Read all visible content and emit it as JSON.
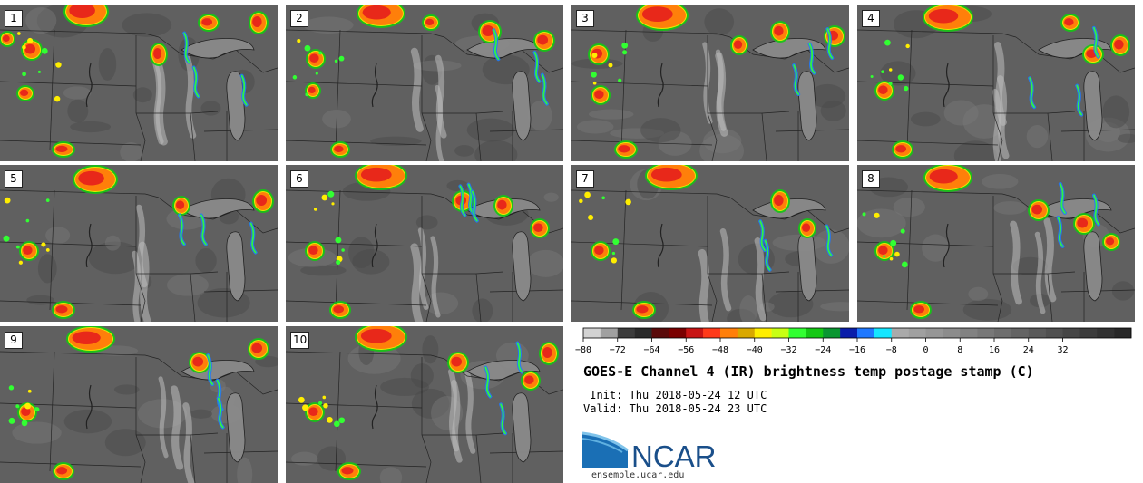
{
  "panels": [
    {
      "label": "1"
    },
    {
      "label": "2"
    },
    {
      "label": "3"
    },
    {
      "label": "4"
    },
    {
      "label": "5"
    },
    {
      "label": "6"
    },
    {
      "label": "7"
    },
    {
      "label": "8"
    },
    {
      "label": "9"
    },
    {
      "label": "10"
    }
  ],
  "colorbar": {
    "colors": [
      "#d2d2d2",
      "#a0a0a0",
      "#3c3c3c",
      "#2a2a2a",
      "#5a0a0a",
      "#7a0000",
      "#c81414",
      "#ff3a1a",
      "#ff7f0a",
      "#d9a800",
      "#ffee00",
      "#c8ff14",
      "#32ff32",
      "#14c814",
      "#0a9632",
      "#0a1eaa",
      "#1e78ff",
      "#14e6ff",
      "#aaaaaa",
      "#a0a0a0",
      "#969696",
      "#8c8c8c",
      "#828282",
      "#787878",
      "#6e6e6e",
      "#646464",
      "#5a5a5a",
      "#505050",
      "#464646",
      "#3c3c3c",
      "#323232",
      "#282828"
    ],
    "min": -80,
    "max": 40,
    "tick_labels": [
      "−80",
      "−72",
      "−64",
      "−56",
      "−48",
      "−40",
      "−32",
      "−24",
      "−16",
      "−8",
      "0",
      "8",
      "16",
      "24",
      "32"
    ]
  },
  "title": "GOES-E Channel 4 (IR) brightness temp postage stamp (C)",
  "init_line": " Init: Thu 2018-05-24 12 UTC",
  "valid_line": "Valid: Thu 2018-05-24 23 UTC",
  "logo": {
    "text": "NCAR",
    "url": "ensemble.ucar.edu",
    "color": "#1a4f8a"
  }
}
